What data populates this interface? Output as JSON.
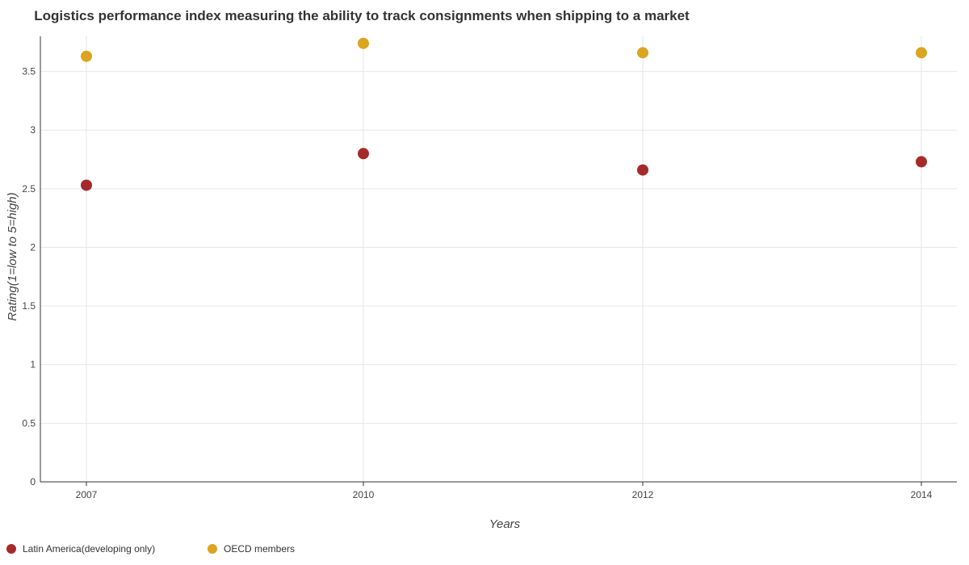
{
  "chart_data": {
    "type": "scatter",
    "title": "Logistics performance index measuring the ability to track consignments when shipping to a market",
    "xlabel": "Years",
    "ylabel": "Rating(1=low to 5=high)",
    "categories": [
      "2007",
      "2010",
      "2012",
      "2014"
    ],
    "ylim": [
      0,
      3.8
    ],
    "yticks": [
      "0",
      "0.5",
      "1",
      "1.5",
      "2",
      "2.5",
      "3",
      "3.5"
    ],
    "grid": true,
    "legend_position": "bottom-left",
    "series": [
      {
        "name": "Latin America(developing only)",
        "color": "#a52a2a",
        "values": [
          2.53,
          2.8,
          2.66,
          2.73
        ]
      },
      {
        "name": "OECD members",
        "color": "#daa520",
        "values": [
          3.63,
          3.74,
          3.66,
          3.66
        ]
      }
    ]
  }
}
